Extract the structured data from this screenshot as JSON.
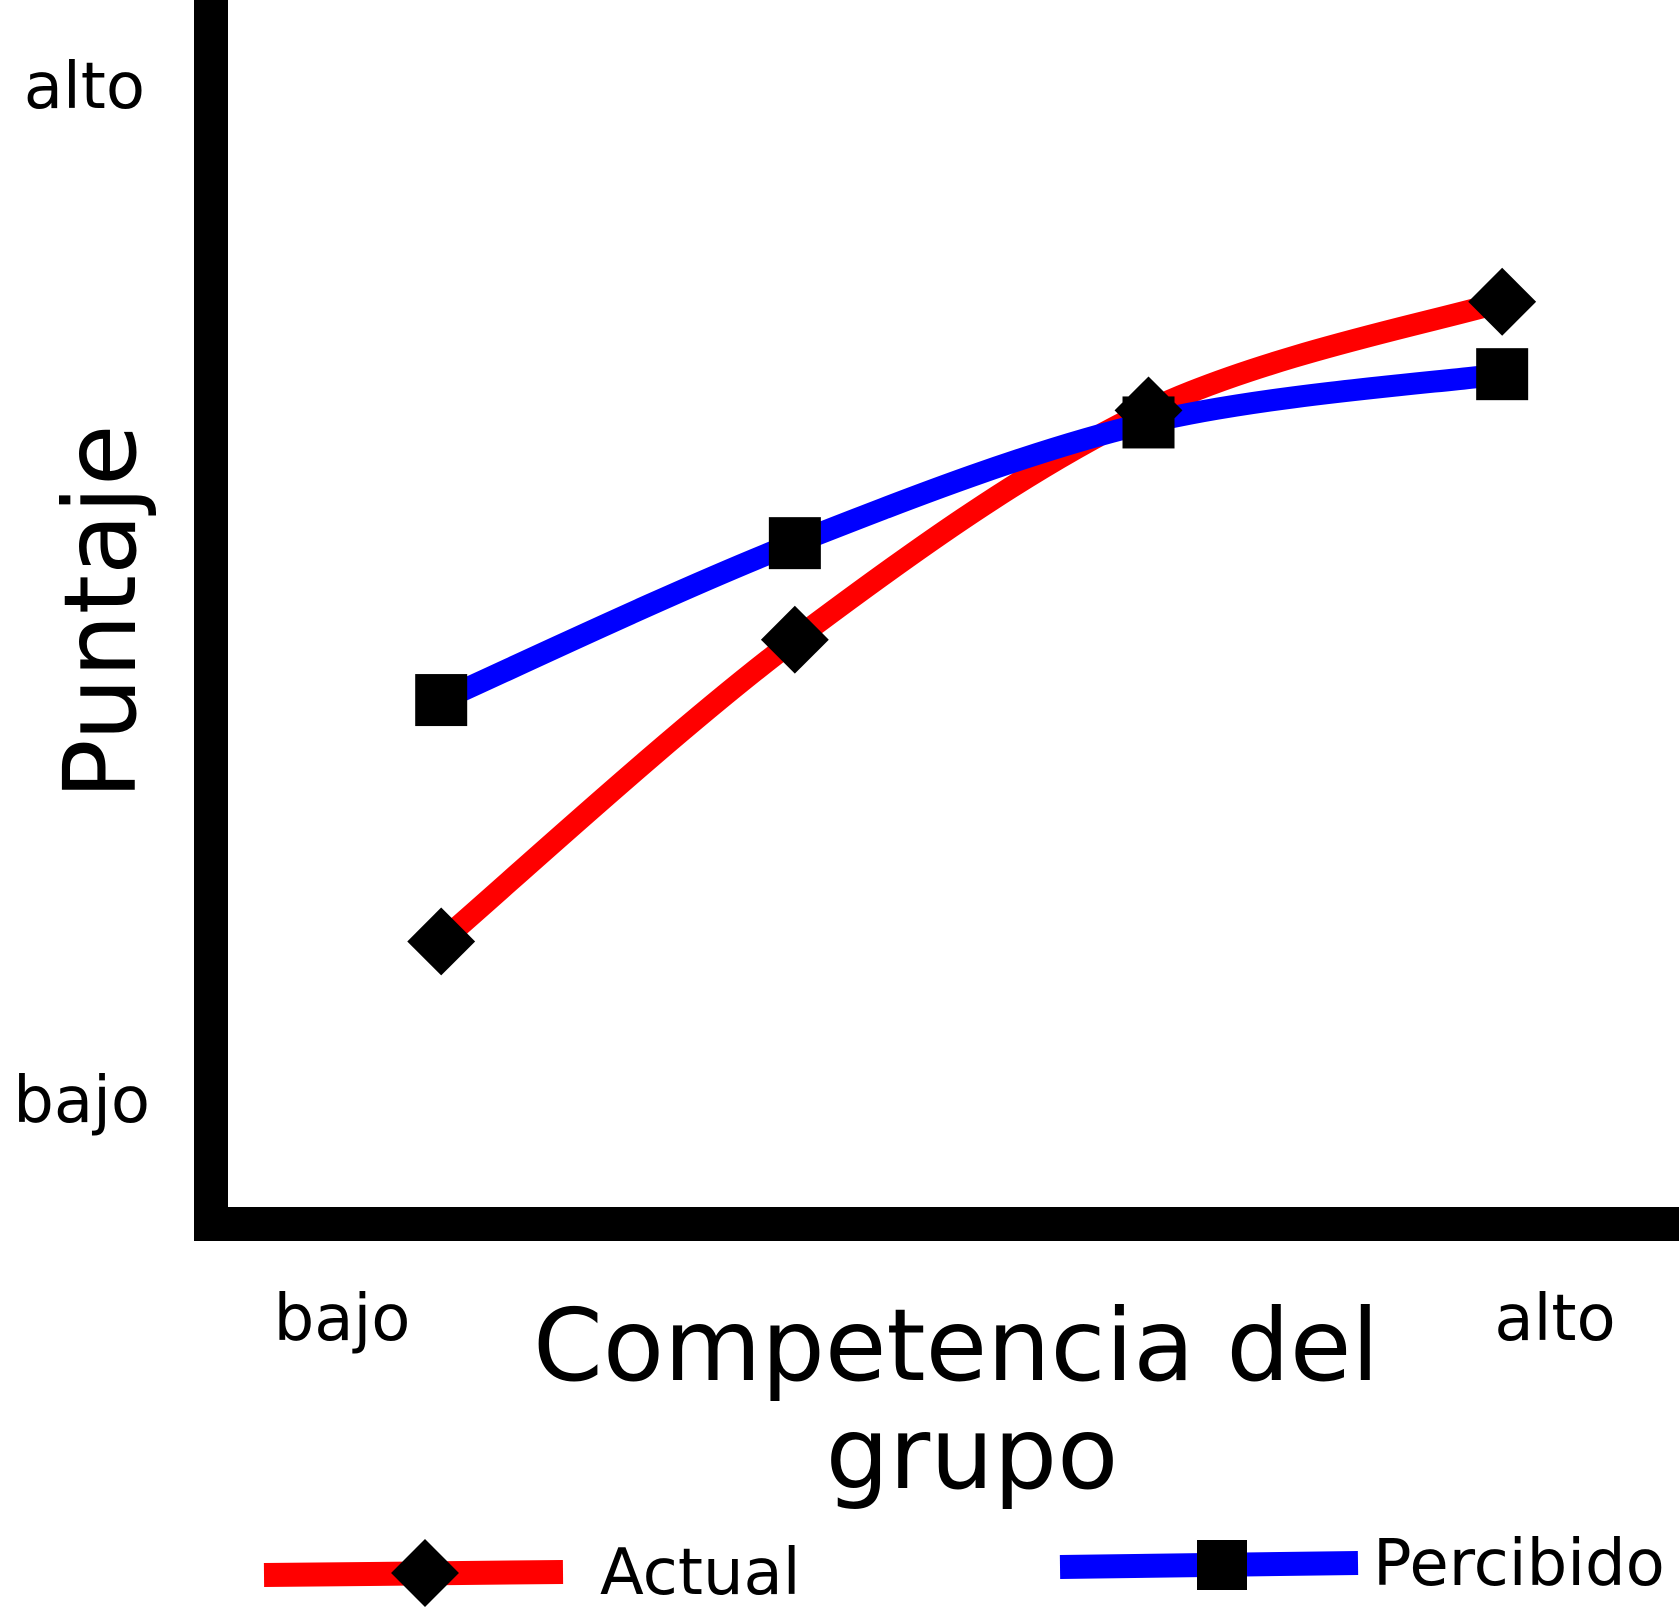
{
  "chart_data": {
    "type": "line",
    "xlabel": "Competencia del grupo",
    "ylabel": "Puntaje",
    "x_tick_low": "bajo",
    "x_tick_high": "alto",
    "y_tick_low": "bajo",
    "y_tick_high": "alto",
    "x": [
      1,
      2,
      3,
      4
    ],
    "xlim": [
      0.4,
      4.5
    ],
    "ylim": [
      0,
      10
    ],
    "series": [
      {
        "name": "Actual",
        "values": [
          2.2,
          4.7,
          6.6,
          7.5
        ],
        "color": "#ff0000",
        "marker": "diamond"
      },
      {
        "name": "Percibido",
        "values": [
          4.2,
          5.5,
          6.5,
          6.9
        ],
        "color": "#0000ff",
        "marker": "square"
      }
    ],
    "legend_position": "bottom",
    "grid": false
  }
}
